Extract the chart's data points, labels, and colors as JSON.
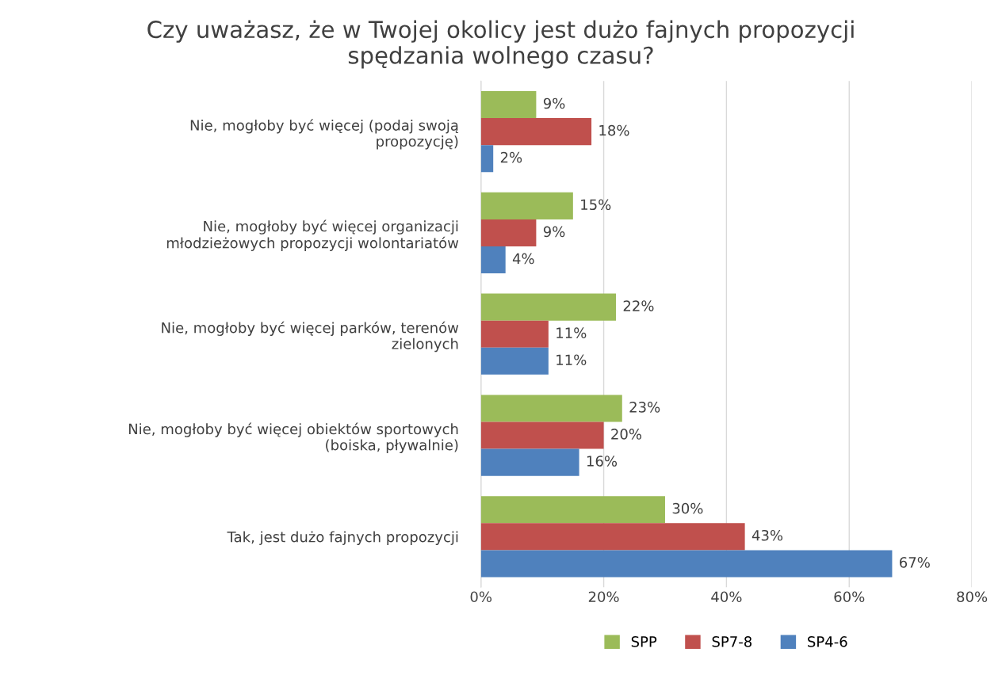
{
  "chart_data": {
    "type": "bar",
    "orientation": "horizontal",
    "title": "Czy uważasz, że w Twojej okolicy jest dużo fajnych propozycji\nspędzania wolnego czasu?",
    "categories": [
      "Nie, mogłoby być więcej (podaj swoją\npropozycję)",
      "Nie, mogłoby być więcej organizacji\nmłodzieżowych propozycji wolontariatów",
      "Nie, mogłoby być więcej parków, terenów\nzielonych",
      "Nie, mogłoby być więcej obiektów sportowych\n(boiska, pływalnie)",
      "Tak, jest dużo fajnych propozycji"
    ],
    "series": [
      {
        "name": "SPP",
        "color": "#9bbb59",
        "values": [
          9,
          15,
          22,
          23,
          30
        ],
        "value_labels": [
          "9%",
          "15%",
          "22%",
          "23%",
          "30%"
        ]
      },
      {
        "name": "SP7-8",
        "color": "#c0504d",
        "values": [
          18,
          9,
          11,
          20,
          43
        ],
        "value_labels": [
          "18%",
          "9%",
          "11%",
          "20%",
          "43%"
        ]
      },
      {
        "name": "SP4-6",
        "color": "#4f81bd",
        "values": [
          2,
          4,
          11,
          16,
          67
        ],
        "value_labels": [
          "2%",
          "4%",
          "11%",
          "16%",
          "67%"
        ]
      }
    ],
    "xlim": [
      0,
      80
    ],
    "xticks": [
      {
        "value": 0,
        "label": "0%"
      },
      {
        "value": 20,
        "label": "20%"
      },
      {
        "value": 40,
        "label": "40%"
      },
      {
        "value": 60,
        "label": "60%"
      },
      {
        "value": 80,
        "label": "80%"
      }
    ],
    "grid": "x",
    "legend": "bottom"
  }
}
